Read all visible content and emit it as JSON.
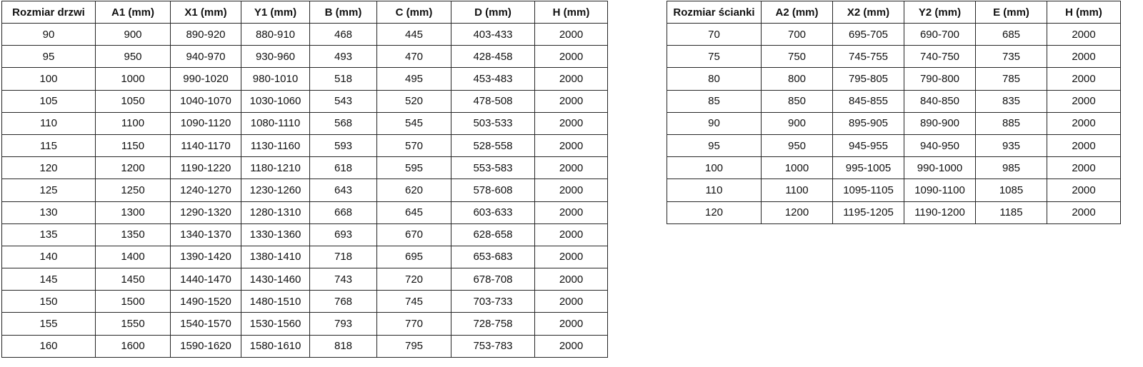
{
  "colors": {
    "background": "#ffffff",
    "border": "#262626",
    "text": "#111111"
  },
  "door_table": {
    "headers": [
      "Rozmiar drzwi",
      "A1 (mm)",
      "X1 (mm)",
      "Y1 (mm)",
      "B (mm)",
      "C (mm)",
      "D (mm)",
      "H (mm)"
    ],
    "rows": [
      [
        "90",
        "900",
        "890-920",
        "880-910",
        "468",
        "445",
        "403-433",
        "2000"
      ],
      [
        "95",
        "950",
        "940-970",
        "930-960",
        "493",
        "470",
        "428-458",
        "2000"
      ],
      [
        "100",
        "1000",
        "990-1020",
        "980-1010",
        "518",
        "495",
        "453-483",
        "2000"
      ],
      [
        "105",
        "1050",
        "1040-1070",
        "1030-1060",
        "543",
        "520",
        "478-508",
        "2000"
      ],
      [
        "110",
        "1100",
        "1090-1120",
        "1080-1110",
        "568",
        "545",
        "503-533",
        "2000"
      ],
      [
        "115",
        "1150",
        "1140-1170",
        "1130-1160",
        "593",
        "570",
        "528-558",
        "2000"
      ],
      [
        "120",
        "1200",
        "1190-1220",
        "1180-1210",
        "618",
        "595",
        "553-583",
        "2000"
      ],
      [
        "125",
        "1250",
        "1240-1270",
        "1230-1260",
        "643",
        "620",
        "578-608",
        "2000"
      ],
      [
        "130",
        "1300",
        "1290-1320",
        "1280-1310",
        "668",
        "645",
        "603-633",
        "2000"
      ],
      [
        "135",
        "1350",
        "1340-1370",
        "1330-1360",
        "693",
        "670",
        "628-658",
        "2000"
      ],
      [
        "140",
        "1400",
        "1390-1420",
        "1380-1410",
        "718",
        "695",
        "653-683",
        "2000"
      ],
      [
        "145",
        "1450",
        "1440-1470",
        "1430-1460",
        "743",
        "720",
        "678-708",
        "2000"
      ],
      [
        "150",
        "1500",
        "1490-1520",
        "1480-1510",
        "768",
        "745",
        "703-733",
        "2000"
      ],
      [
        "155",
        "1550",
        "1540-1570",
        "1530-1560",
        "793",
        "770",
        "728-758",
        "2000"
      ],
      [
        "160",
        "1600",
        "1590-1620",
        "1580-1610",
        "818",
        "795",
        "753-783",
        "2000"
      ]
    ]
  },
  "wall_table": {
    "headers": [
      "Rozmiar ścianki",
      "A2 (mm)",
      "X2 (mm)",
      "Y2 (mm)",
      "E (mm)",
      "H (mm)"
    ],
    "rows": [
      [
        "70",
        "700",
        "695-705",
        "690-700",
        "685",
        "2000"
      ],
      [
        "75",
        "750",
        "745-755",
        "740-750",
        "735",
        "2000"
      ],
      [
        "80",
        "800",
        "795-805",
        "790-800",
        "785",
        "2000"
      ],
      [
        "85",
        "850",
        "845-855",
        "840-850",
        "835",
        "2000"
      ],
      [
        "90",
        "900",
        "895-905",
        "890-900",
        "885",
        "2000"
      ],
      [
        "95",
        "950",
        "945-955",
        "940-950",
        "935",
        "2000"
      ],
      [
        "100",
        "1000",
        "995-1005",
        "990-1000",
        "985",
        "2000"
      ],
      [
        "110",
        "1100",
        "1095-1105",
        "1090-1100",
        "1085",
        "2000"
      ],
      [
        "120",
        "1200",
        "1195-1205",
        "1190-1200",
        "1185",
        "2000"
      ]
    ]
  }
}
